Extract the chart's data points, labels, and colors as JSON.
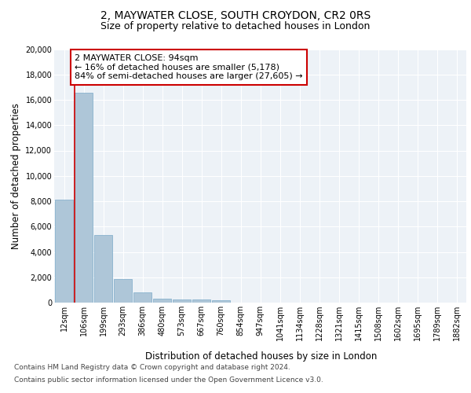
{
  "title1": "2, MAYWATER CLOSE, SOUTH CROYDON, CR2 0RS",
  "title2": "Size of property relative to detached houses in London",
  "xlabel": "Distribution of detached houses by size in London",
  "ylabel": "Number of detached properties",
  "categories": [
    "12sqm",
    "106sqm",
    "199sqm",
    "293sqm",
    "386sqm",
    "480sqm",
    "573sqm",
    "667sqm",
    "760sqm",
    "854sqm",
    "947sqm",
    "1041sqm",
    "1134sqm",
    "1228sqm",
    "1321sqm",
    "1415sqm",
    "1508sqm",
    "1602sqm",
    "1695sqm",
    "1789sqm",
    "1882sqm"
  ],
  "values": [
    8100,
    16550,
    5350,
    1850,
    780,
    340,
    270,
    220,
    180,
    0,
    0,
    0,
    0,
    0,
    0,
    0,
    0,
    0,
    0,
    0,
    0
  ],
  "bar_color": "#aec6d8",
  "bar_edge_color": "#7aaac8",
  "vline_color": "#cc0000",
  "annotation_text": "2 MAYWATER CLOSE: 94sqm\n← 16% of detached houses are smaller (5,178)\n84% of semi-detached houses are larger (27,605) →",
  "annotation_box_color": "#ffffff",
  "annotation_box_edge": "#cc0000",
  "ylim": [
    0,
    20000
  ],
  "yticks": [
    0,
    2000,
    4000,
    6000,
    8000,
    10000,
    12000,
    14000,
    16000,
    18000,
    20000
  ],
  "footer1": "Contains HM Land Registry data © Crown copyright and database right 2024.",
  "footer2": "Contains public sector information licensed under the Open Government Licence v3.0.",
  "bg_color": "#edf2f7",
  "title1_fontsize": 10,
  "title2_fontsize": 9,
  "axis_label_fontsize": 8.5,
  "tick_fontsize": 7,
  "annotation_fontsize": 8,
  "footer_fontsize": 6.5
}
